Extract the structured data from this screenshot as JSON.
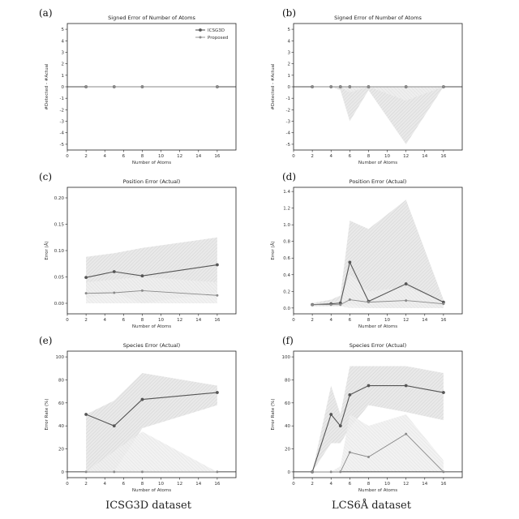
{
  "captions": [
    "ICSG3D dataset",
    "LCS6Å dataset"
  ],
  "colors": {
    "icsg": "#555555",
    "proposed": "#8a8a8a",
    "band_icsg": "#d0d0d0",
    "band_prop": "#e4e4e4"
  },
  "chart_data": [
    {
      "label": "(a)",
      "type": "line",
      "title": "Signed Error of Number of Atoms",
      "xlabel": "Number of Atoms",
      "ylabel": "#Detected - #Actual",
      "xlim": [
        0,
        18
      ],
      "ylim": [
        -5.5,
        5.5
      ],
      "xticks": [
        0,
        2,
        4,
        6,
        8,
        10,
        12,
        14,
        16
      ],
      "yticks": [
        -5,
        -4,
        -3,
        -2,
        -1,
        0,
        1,
        2,
        3,
        4,
        5
      ],
      "legend": "top-right",
      "x": [
        2,
        5,
        8,
        16
      ],
      "series": [
        {
          "name": "ICSG3D",
          "values": [
            0,
            0,
            0,
            0
          ],
          "lower": [
            0,
            0,
            0,
            0
          ],
          "upper": [
            0,
            0,
            0,
            0
          ]
        },
        {
          "name": "Proposed",
          "values": [
            0,
            0,
            0,
            0
          ],
          "lower": [
            0,
            0,
            0,
            0
          ],
          "upper": [
            0,
            0,
            0,
            0
          ]
        }
      ]
    },
    {
      "label": "(b)",
      "type": "line",
      "title": "Signed Error of Number of Atoms",
      "xlabel": "Number of Atoms",
      "ylabel": "#Detected - #Actual",
      "xlim": [
        0,
        18
      ],
      "ylim": [
        -5.5,
        5.5
      ],
      "xticks": [
        0,
        2,
        4,
        6,
        8,
        10,
        12,
        14,
        16
      ],
      "yticks": [
        -5,
        -4,
        -3,
        -2,
        -1,
        0,
        1,
        2,
        3,
        4,
        5
      ],
      "x": [
        2,
        4,
        5,
        6,
        8,
        12,
        16
      ],
      "series": [
        {
          "values": [
            0,
            0,
            0,
            0,
            0,
            0,
            0
          ],
          "lower": [
            0,
            0,
            -0.3,
            -3.0,
            -0.3,
            -5.0,
            0
          ],
          "upper": [
            0,
            0,
            0,
            0,
            0,
            0,
            0
          ]
        },
        {
          "values": [
            0,
            0,
            0,
            0,
            0,
            0,
            0
          ],
          "lower": [
            0,
            0,
            0,
            -0.5,
            0,
            -1.2,
            0
          ],
          "upper": [
            0,
            0,
            0,
            0,
            0,
            0,
            0
          ]
        }
      ]
    },
    {
      "label": "(c)",
      "type": "line",
      "title": "Position Error (Actual)",
      "xlabel": "Number of Atoms",
      "ylabel": "Error (Å)",
      "xlim": [
        0,
        18
      ],
      "ylim": [
        -0.02,
        0.22
      ],
      "xticks": [
        0,
        2,
        4,
        6,
        8,
        10,
        12,
        14,
        16
      ],
      "yticks": [
        0.0,
        0.05,
        0.1,
        0.15,
        0.2
      ],
      "ytick_labels": [
        "0.00",
        "0.05",
        "0.10",
        "0.15",
        "0.20"
      ],
      "x": [
        2,
        5,
        8,
        16
      ],
      "series": [
        {
          "values": [
            0.049,
            0.06,
            0.052,
            0.073
          ],
          "lower": [
            0.01,
            0.02,
            0.0,
            0.02
          ],
          "upper": [
            0.088,
            0.095,
            0.105,
            0.125
          ]
        },
        {
          "values": [
            0.019,
            0.02,
            0.024,
            0.015
          ],
          "lower": [
            0.0,
            0.0,
            0.0,
            0.0
          ],
          "upper": [
            0.04,
            0.045,
            0.05,
            0.04
          ]
        }
      ]
    },
    {
      "label": "(d)",
      "type": "line",
      "title": "Position Error (Actual)",
      "xlabel": "Number of Atoms",
      "ylabel": "Error (Å)",
      "xlim": [
        0,
        18
      ],
      "ylim": [
        -0.07,
        1.45
      ],
      "xticks": [
        0,
        2,
        4,
        6,
        8,
        10,
        12,
        14,
        16
      ],
      "yticks": [
        0.0,
        0.2,
        0.4,
        0.6,
        0.8,
        1.0,
        1.2,
        1.4
      ],
      "ytick_labels": [
        "0.0",
        "0.2",
        "0.4",
        "0.6",
        "0.8",
        "1.0",
        "1.2",
        "1.4"
      ],
      "x": [
        2,
        4,
        5,
        6,
        8,
        12,
        16
      ],
      "series": [
        {
          "values": [
            0.04,
            0.05,
            0.06,
            0.55,
            0.08,
            0.29,
            0.07
          ],
          "lower": [
            0.02,
            0.02,
            0.02,
            0.05,
            0.0,
            0.0,
            0.0
          ],
          "upper": [
            0.06,
            0.1,
            0.15,
            1.05,
            0.95,
            1.3,
            0.1
          ]
        },
        {
          "values": [
            0.04,
            0.04,
            0.04,
            0.1,
            0.07,
            0.09,
            0.05
          ],
          "lower": [
            0.02,
            0.02,
            0.02,
            0.0,
            0.0,
            0.0,
            0.0
          ],
          "upper": [
            0.06,
            0.07,
            0.08,
            0.4,
            0.2,
            0.25,
            0.08
          ]
        }
      ]
    },
    {
      "label": "(e)",
      "type": "line",
      "title": "Species Error (Actual)",
      "xlabel": "Number of Atoms",
      "ylabel": "Error Rate (%)",
      "xlim": [
        0,
        18
      ],
      "ylim": [
        -5,
        105
      ],
      "xticks": [
        0,
        2,
        4,
        6,
        8,
        10,
        12,
        14,
        16
      ],
      "yticks": [
        0,
        20,
        40,
        60,
        80,
        100
      ],
      "x": [
        2,
        5,
        8,
        16
      ],
      "series": [
        {
          "values": [
            50,
            40,
            63,
            69
          ],
          "lower": [
            0,
            0,
            38,
            58
          ],
          "upper": [
            50,
            62,
            86,
            75
          ]
        },
        {
          "values": [
            0,
            0,
            0,
            0
          ],
          "lower": [
            0,
            0,
            0,
            0
          ],
          "upper": [
            0,
            18,
            35,
            0
          ]
        }
      ]
    },
    {
      "label": "(f)",
      "type": "line",
      "title": "Species Error (Actual)",
      "xlabel": "Number of Atoms",
      "ylabel": "Error Rate (%)",
      "xlim": [
        0,
        18
      ],
      "ylim": [
        -5,
        105
      ],
      "xticks": [
        0,
        2,
        4,
        6,
        8,
        10,
        12,
        14,
        16
      ],
      "yticks": [
        0,
        20,
        40,
        60,
        80,
        100
      ],
      "x": [
        2,
        4,
        5,
        6,
        8,
        12,
        16
      ],
      "series": [
        {
          "values": [
            0,
            50,
            40,
            67,
            75,
            75,
            69
          ],
          "lower": [
            0,
            25,
            25,
            38,
            58,
            52,
            45
          ],
          "upper": [
            0,
            75,
            50,
            92,
            92,
            92,
            86
          ]
        },
        {
          "values": [
            0,
            0,
            0,
            17,
            13,
            33,
            0
          ],
          "lower": [
            0,
            0,
            0,
            0,
            0,
            0,
            0
          ],
          "upper": [
            0,
            0,
            5,
            50,
            40,
            50,
            10
          ]
        }
      ]
    }
  ]
}
